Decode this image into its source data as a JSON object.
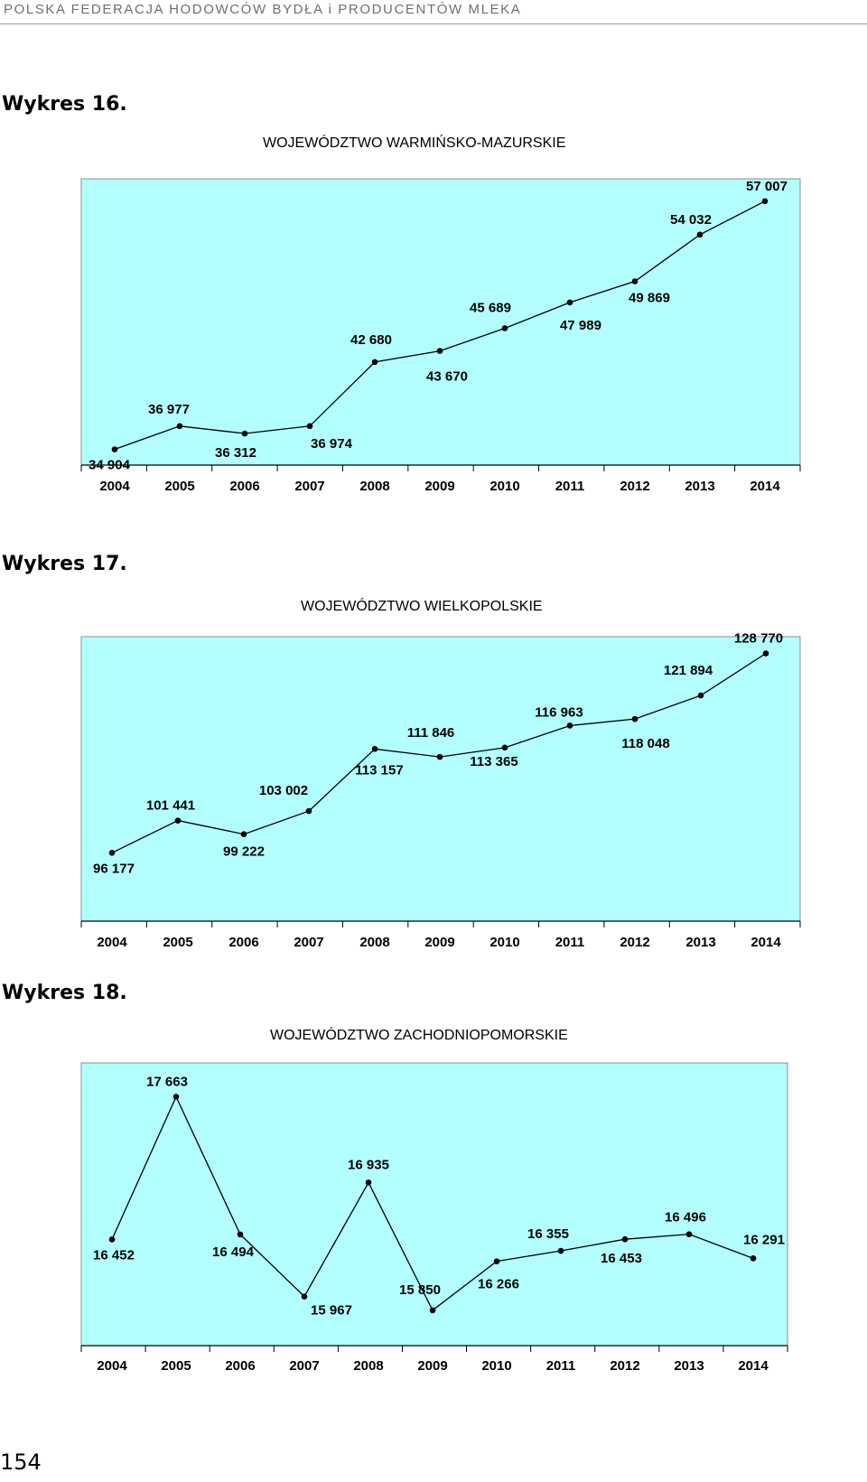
{
  "header": {
    "text": "POLSKA FEDERACJA HODOWCÓW BYDŁA i PRODUCENTÓW MLEKA"
  },
  "page_number": "154",
  "colors": {
    "plot_bg": "#b3ffff",
    "line": "#000000"
  },
  "charts": [
    {
      "label": "Wykres 16.",
      "title": "WOJEWÓDZTWO WARMIŃSKO-MAZURSKIE"
    },
    {
      "label": "Wykres 17.",
      "title": "WOJEWÓDZTWO WIELKOPOLSKIE"
    },
    {
      "label": "Wykres 18.",
      "title": "WOJEWÓDZTWO ZACHODNIOPOMORSKIE"
    }
  ],
  "chart_data": [
    {
      "type": "line",
      "title": "WOJEWÓDZTWO WARMIŃSKO-MAZURSKIE",
      "categories": [
        "2004",
        "2005",
        "2006",
        "2007",
        "2008",
        "2009",
        "2010",
        "2011",
        "2012",
        "2013",
        "2014"
      ],
      "values": [
        34904,
        36977,
        36312,
        36974,
        42680,
        43670,
        45689,
        47989,
        49869,
        54032,
        57007
      ],
      "data_labels": [
        "34 904",
        "36 977",
        "36 312",
        "36 974",
        "42 680",
        "43 670",
        "45 689",
        "47 989",
        "49 869",
        "54 032",
        "57 007"
      ],
      "ylim": [
        33500,
        59000
      ],
      "grid": false
    },
    {
      "type": "line",
      "title": "WOJEWÓDZTWO WIELKOPOLSKIE",
      "categories": [
        "2004",
        "2005",
        "2006",
        "2007",
        "2008",
        "2009",
        "2010",
        "2011",
        "2012",
        "2013",
        "2014"
      ],
      "values": [
        96177,
        101441,
        99222,
        103002,
        113157,
        111846,
        113365,
        116963,
        118048,
        121894,
        128770
      ],
      "data_labels": [
        "96 177",
        "101 441",
        "99 222",
        "103 002",
        "113 157",
        "111 846",
        "113 365",
        "116 963",
        "118 048",
        "121 894",
        "128 770"
      ],
      "ylim": [
        85000,
        131500
      ],
      "grid": false
    },
    {
      "type": "line",
      "title": "WOJEWÓDZTWO ZACHODNIOPOMORSKIE",
      "categories": [
        "2004",
        "2005",
        "2006",
        "2007",
        "2008",
        "2009",
        "2010",
        "2011",
        "2012",
        "2013",
        "2014"
      ],
      "values": [
        16452,
        17663,
        16494,
        15967,
        16935,
        15850,
        16266,
        16355,
        16453,
        16496,
        16291
      ],
      "data_labels": [
        "16 452",
        "17 663",
        "16 494",
        "15 967",
        "16 935",
        "15 850",
        "16 266",
        "16 355",
        "16 453",
        "16 496",
        "16 291"
      ],
      "ylim": [
        15550,
        17950
      ],
      "grid": false
    }
  ]
}
